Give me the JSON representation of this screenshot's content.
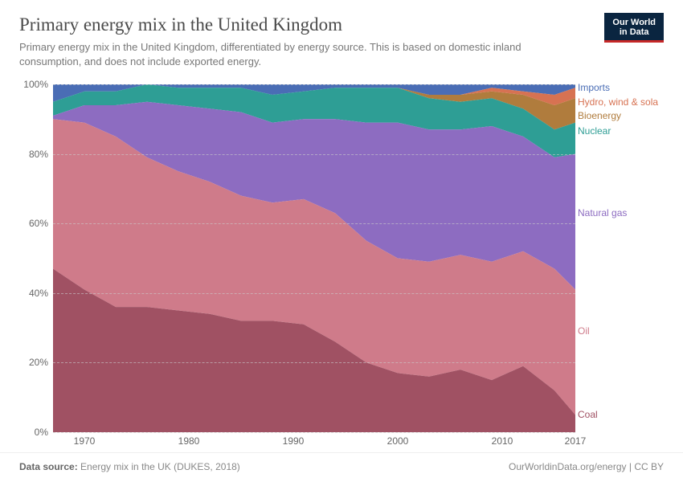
{
  "header": {
    "title": "Primary energy mix in the United Kingdom",
    "subtitle": "Primary energy mix in the United Kingdom, differentiated by energy source. This is based on domestic inland consumption, and does not include exported energy.",
    "logo_line1": "Our World",
    "logo_line2": "in Data"
  },
  "footer": {
    "source_label": "Data source:",
    "source_text": " Energy mix in the UK (DUKES, 2018)",
    "attribution": "OurWorldinData.org/energy | CC BY"
  },
  "chart": {
    "type": "stacked-area-percent",
    "xlim": [
      1967,
      2017
    ],
    "ylim": [
      0,
      100
    ],
    "x_ticks": [
      1970,
      1980,
      1990,
      2000,
      2010,
      2017
    ],
    "y_ticks": [
      0,
      20,
      40,
      60,
      80,
      100
    ],
    "y_tick_suffix": "%",
    "background_color": "#ffffff",
    "grid_color": "#cccccc",
    "axis_font_size": 12,
    "axis_color": "#666666",
    "years": [
      1967,
      1970,
      1973,
      1976,
      1979,
      1982,
      1985,
      1988,
      1991,
      1994,
      1997,
      2000,
      2003,
      2006,
      2009,
      2012,
      2015,
      2017
    ],
    "series": [
      {
        "name": "Coal",
        "color": "#a05163",
        "label_y": 95,
        "values": [
          47,
          41,
          36,
          36,
          35,
          34,
          32,
          32,
          31,
          26,
          20,
          17,
          16,
          18,
          15,
          19,
          12,
          5
        ]
      },
      {
        "name": "Oil",
        "color": "#cf7b8a",
        "label_y": 71,
        "values": [
          43,
          48,
          49,
          43,
          40,
          38,
          36,
          34,
          36,
          37,
          35,
          33,
          33,
          33,
          34,
          33,
          35,
          36
        ]
      },
      {
        "name": "Natural gas",
        "color": "#8d6cc1",
        "label_y": 37,
        "values": [
          1,
          5,
          9,
          16,
          19,
          21,
          24,
          23,
          23,
          27,
          34,
          39,
          38,
          36,
          39,
          33,
          32,
          39
        ]
      },
      {
        "name": "Nuclear",
        "color": "#2e9e95",
        "label_y": 13.5,
        "values": [
          4,
          4,
          4,
          5,
          5,
          6,
          7,
          8,
          8,
          9,
          10,
          10,
          9,
          8,
          8,
          8,
          8,
          9
        ]
      },
      {
        "name": "Bioenergy",
        "color": "#b07c3d",
        "label_y": 9,
        "values": [
          0,
          0,
          0,
          0,
          0,
          0,
          0,
          0,
          0,
          0,
          0,
          0,
          1,
          2,
          2,
          4,
          7,
          7
        ]
      },
      {
        "name": "Hydro, wind & sola",
        "color": "#d77252",
        "label_y": 5,
        "values": [
          0,
          0,
          0,
          0,
          0,
          0,
          0,
          0,
          0,
          0,
          0,
          0,
          0,
          0,
          1,
          1,
          3,
          3
        ]
      },
      {
        "name": "Imports",
        "color": "#4a6db5",
        "label_y": 1,
        "values": [
          5,
          2,
          2,
          0,
          1,
          1,
          1,
          3,
          2,
          1,
          1,
          1,
          3,
          3,
          1,
          2,
          3,
          1
        ]
      }
    ]
  }
}
